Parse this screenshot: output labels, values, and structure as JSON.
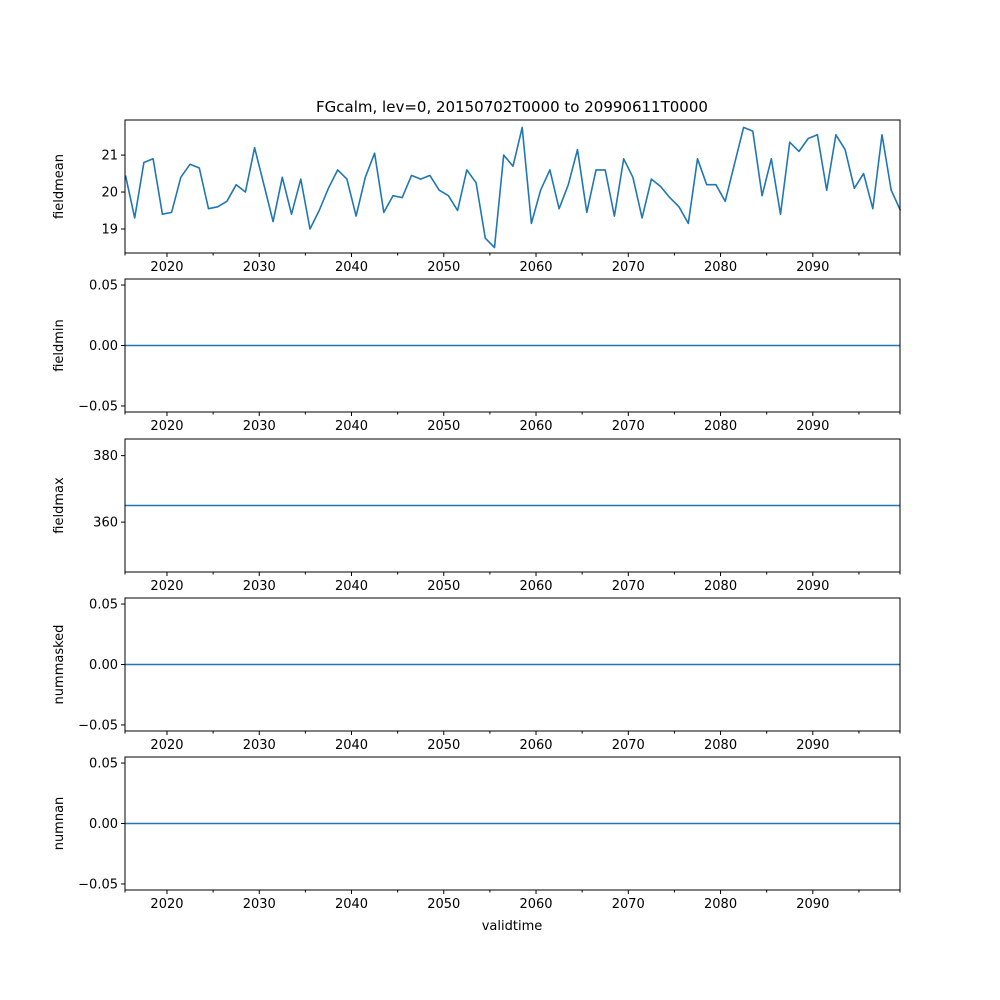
{
  "chart_data": {
    "type": "line",
    "title": "FGcalm, lev=0, 20150702T0000 to 20990611T0000",
    "xlabel": "validtime",
    "x_start": 2015.5,
    "x_step": 1,
    "xlim": [
      2015.45,
      2099.45
    ],
    "xticks": [
      2020,
      2030,
      2040,
      2050,
      2060,
      2070,
      2080,
      2090
    ],
    "xtick_labels": [
      "2020",
      "2030",
      "2040",
      "2050",
      "2060",
      "2070",
      "2080",
      "2090"
    ],
    "x_minor_ticks": [
      2015.45,
      2025,
      2035,
      2045,
      2055,
      2065,
      2075,
      2085,
      2095,
      2099.45
    ],
    "line_color": "#1f77b4",
    "grid": false,
    "panels": [
      {
        "ylabel": "fieldmean",
        "ylim": [
          18.35,
          21.95
        ],
        "yticks": [
          19,
          20,
          21
        ],
        "ytick_labels": [
          "19",
          "20",
          "21"
        ],
        "values": [
          20.45,
          19.3,
          20.8,
          20.9,
          19.4,
          19.45,
          20.4,
          20.75,
          20.65,
          19.55,
          19.6,
          19.75,
          20.2,
          20.0,
          21.2,
          20.2,
          19.2,
          20.4,
          19.4,
          20.35,
          19.0,
          19.5,
          20.1,
          20.6,
          20.35,
          19.35,
          20.4,
          21.05,
          19.45,
          19.9,
          19.85,
          20.45,
          20.35,
          20.45,
          20.05,
          19.9,
          19.5,
          20.6,
          20.25,
          18.75,
          18.5,
          21.0,
          20.7,
          21.75,
          19.15,
          20.05,
          20.6,
          19.55,
          20.2,
          21.15,
          19.45,
          20.6,
          20.6,
          19.35,
          20.9,
          20.4,
          19.3,
          20.35,
          20.15,
          19.85,
          19.6,
          19.15,
          20.9,
          20.2,
          20.2,
          19.75,
          20.75,
          21.75,
          21.65,
          19.9,
          20.9,
          19.4,
          21.35,
          21.1,
          21.45,
          21.55,
          20.05,
          21.55,
          21.15,
          20.1,
          20.5,
          19.55,
          21.55,
          20.05,
          19.5
        ]
      },
      {
        "ylabel": "fieldmin",
        "ylim": [
          -0.055,
          0.055
        ],
        "yticks": [
          -0.05,
          0.0,
          0.05
        ],
        "ytick_labels": [
          "−0.05",
          "0.00",
          "0.05"
        ],
        "constant": 0
      },
      {
        "ylabel": "fieldmax",
        "ylim": [
          345,
          385
        ],
        "yticks": [
          360,
          380
        ],
        "ytick_labels": [
          "360",
          "380"
        ],
        "constant": 365
      },
      {
        "ylabel": "nummasked",
        "ylim": [
          -0.055,
          0.055
        ],
        "yticks": [
          -0.05,
          0.0,
          0.05
        ],
        "ytick_labels": [
          "−0.05",
          "0.00",
          "0.05"
        ],
        "constant": 0
      },
      {
        "ylabel": "numnan",
        "ylim": [
          -0.055,
          0.055
        ],
        "yticks": [
          -0.05,
          0.0,
          0.05
        ],
        "ytick_labels": [
          "−0.05",
          "0.00",
          "0.05"
        ],
        "constant": 0
      }
    ]
  }
}
